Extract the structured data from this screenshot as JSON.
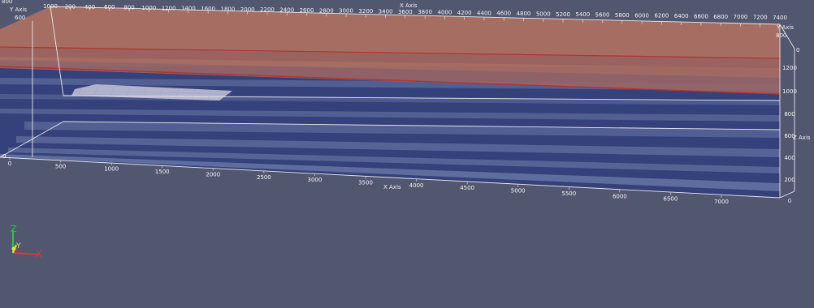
{
  "scene": {
    "background": "#525770",
    "colors": {
      "water": "#33407a",
      "water_band": "#6c79a8",
      "sediment": "#b5715f",
      "red_line": "#b3352f",
      "bbox": "#e8e8ee",
      "mesh": "#d4d4df"
    },
    "x_axis_top": {
      "title": "X Axis",
      "ticks": [
        "1000",
        "200",
        "400",
        "600",
        "800",
        "1000",
        "1200",
        "1400",
        "1600",
        "1800",
        "2000",
        "2200",
        "2400",
        "2600",
        "2800",
        "3000",
        "3200",
        "3400",
        "3600",
        "3800",
        "4000",
        "4200",
        "4400",
        "4600",
        "4800",
        "5000",
        "5200",
        "5400",
        "5600",
        "5800",
        "6000",
        "6200",
        "6400",
        "6600",
        "6800",
        "7000",
        "7200",
        "7400"
      ]
    },
    "x_axis_bottom": {
      "title": "X Axis",
      "ticks": [
        "0",
        "500",
        "1000",
        "1500",
        "2000",
        "2500",
        "3000",
        "3500",
        "4000",
        "4500",
        "5000",
        "5500",
        "6000",
        "6500",
        "7000"
      ]
    },
    "y_axis": {
      "title": "Y Axis",
      "ticks": [
        "600",
        "800"
      ]
    },
    "y_axis_right": {
      "title": "Y Axis",
      "ticks": [
        "800",
        "0"
      ]
    },
    "z_axis_right": {
      "title": "Z Axis",
      "ticks": [
        "1200",
        "1000",
        "800",
        "600",
        "400",
        "200",
        "0"
      ]
    },
    "left_ticks": [
      "0"
    ]
  },
  "orientation_axes": {
    "z_label": "Z",
    "y_label": "Y",
    "x_label": "X",
    "z_color": "#2cc43a",
    "y_color": "#e8e23a",
    "x_color": "#d43a3a"
  }
}
